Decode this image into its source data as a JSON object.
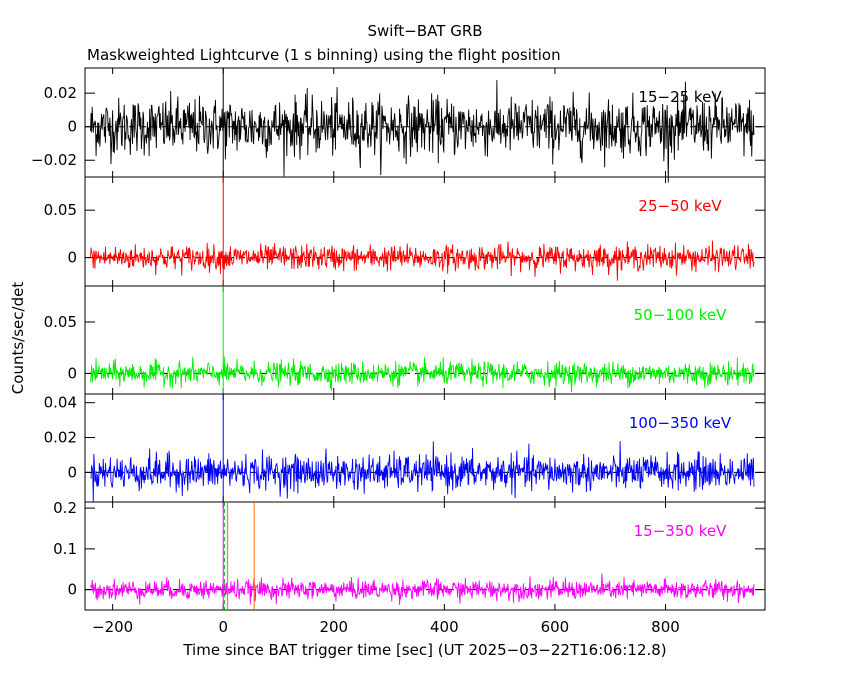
{
  "chart_data": {
    "type": "line",
    "title": "Swift−BAT GRB",
    "subtitle": "Maskweighted Lightcurve (1 s binning) using the flight position",
    "xlabel": "Time since BAT trigger time [sec] (UT 2025−03−22T16:06:12.8)",
    "ylabel": "Counts/sec/det",
    "xlim": [
      -250,
      980
    ],
    "x_ticks": [
      -200,
      0,
      200,
      400,
      600,
      800
    ],
    "x_tick_labels": [
      "−200",
      "0",
      "200",
      "400",
      "600",
      "800"
    ],
    "data_x_range": [
      -240,
      960
    ],
    "binning_sec": 1,
    "trigger_time": 0,
    "panels": [
      {
        "band": "15−25 keV",
        "color": "#000000",
        "ylim": [
          -0.03,
          0.035
        ],
        "y_ticks": [
          -0.02,
          0,
          0.02
        ],
        "y_tick_labels": [
          "−0.02",
          "0",
          "0.02"
        ],
        "noise_sigma": 0.0085,
        "marker_lines": [
          0
        ]
      },
      {
        "band": "25−50 keV",
        "color": "#ff0000",
        "ylim": [
          -0.03,
          0.085
        ],
        "y_ticks": [
          0,
          0.05
        ],
        "y_tick_labels": [
          "0",
          "0.05"
        ],
        "noise_sigma": 0.0065,
        "marker_lines": [
          0
        ]
      },
      {
        "band": "50−100 keV",
        "color": "#00ee00",
        "ylim": [
          -0.02,
          0.085
        ],
        "y_ticks": [
          0,
          0.05
        ],
        "y_tick_labels": [
          "0",
          "0.05"
        ],
        "noise_sigma": 0.0055,
        "marker_lines": [
          0
        ]
      },
      {
        "band": "100−350 keV",
        "color": "#0000ff",
        "ylim": [
          -0.017,
          0.045
        ],
        "y_ticks": [
          0,
          0.02,
          0.04
        ],
        "y_tick_labels": [
          "0",
          "0.02",
          "0.04"
        ],
        "noise_sigma": 0.005,
        "marker_lines": [
          0
        ]
      },
      {
        "band": "15−350 keV",
        "color": "#ff00ff",
        "ylim": [
          -0.05,
          0.215
        ],
        "y_ticks": [
          0,
          0.1,
          0.2
        ],
        "y_tick_labels": [
          "0",
          "0.1",
          "0.2"
        ],
        "noise_sigma": 0.012,
        "marker_lines": [
          0
        ],
        "extra_markers": [
          {
            "x": 2,
            "color": "#00aa00",
            "dashed": true
          },
          {
            "x": 8,
            "color": "#ff6600"
          },
          {
            "x": 56,
            "color": "#ff6600"
          }
        ]
      }
    ]
  }
}
